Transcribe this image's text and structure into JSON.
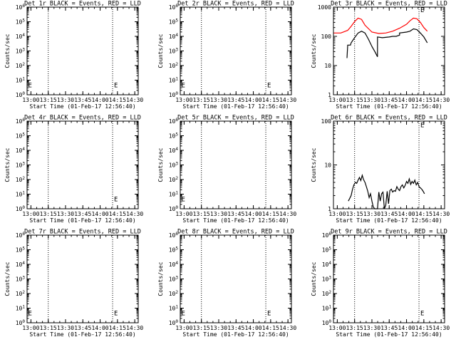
{
  "chart_data": [
    {
      "type": "line",
      "title": "Det 1r BLACK = Events, RED = LLD",
      "xlabel": "Start Time (01-Feb-17 12:56:40)",
      "ylabel": "Counts/sec",
      "xlim": [
        12.9444,
        14.55
      ],
      "log_y": true,
      "ylim": [
        1,
        1000000
      ],
      "xticks": [
        {
          "x": 13.0,
          "label": "13:00"
        },
        {
          "x": 13.25,
          "label": "13:15"
        },
        {
          "x": 13.5,
          "label": "13:30"
        },
        {
          "x": 13.75,
          "label": "13:45"
        },
        {
          "x": 14.0,
          "label": "14:00"
        },
        {
          "x": 14.25,
          "label": "14:15"
        },
        {
          "x": 14.5,
          "label": "14:30"
        }
      ],
      "yticks": [
        {
          "v": 1,
          "mant": "10",
          "exp": "0"
        },
        {
          "v": 10,
          "mant": "10",
          "exp": "1"
        },
        {
          "v": 100,
          "mant": "10",
          "exp": "2"
        },
        {
          "v": 1000,
          "mant": "10",
          "exp": "3"
        },
        {
          "v": 10000,
          "mant": "10",
          "exp": "4"
        },
        {
          "v": 100000,
          "mant": "10",
          "exp": "5"
        },
        {
          "v": 1000000,
          "mant": "10",
          "exp": "6"
        }
      ],
      "vlines": [
        13.25,
        14.18
      ],
      "markers": [
        {
          "text": "E",
          "x": 12.96,
          "y": 5
        },
        {
          "text": "E",
          "x": 14.2,
          "y": 5
        }
      ],
      "series": []
    },
    {
      "type": "line",
      "title": "Det 2r BLACK = Events, RED = LLD",
      "xlabel": "Start Time (01-Feb-17 12:56:40)",
      "ylabel": "Counts/sec",
      "xlim": [
        12.9444,
        14.55
      ],
      "log_y": true,
      "ylim": [
        1,
        1000000
      ],
      "xticks": [
        {
          "x": 13.0,
          "label": "13:00"
        },
        {
          "x": 13.25,
          "label": "13:15"
        },
        {
          "x": 13.5,
          "label": "13:30"
        },
        {
          "x": 13.75,
          "label": "13:45"
        },
        {
          "x": 14.0,
          "label": "14:00"
        },
        {
          "x": 14.25,
          "label": "14:15"
        },
        {
          "x": 14.5,
          "label": "14:30"
        }
      ],
      "yticks": [
        {
          "v": 1,
          "mant": "10",
          "exp": "0"
        },
        {
          "v": 10,
          "mant": "10",
          "exp": "1"
        },
        {
          "v": 100,
          "mant": "10",
          "exp": "2"
        },
        {
          "v": 1000,
          "mant": "10",
          "exp": "3"
        },
        {
          "v": 10000,
          "mant": "10",
          "exp": "4"
        },
        {
          "v": 100000,
          "mant": "10",
          "exp": "5"
        },
        {
          "v": 1000000,
          "mant": "10",
          "exp": "6"
        }
      ],
      "vlines": [
        13.25,
        14.18
      ],
      "markers": [
        {
          "text": "E",
          "x": 12.96,
          "y": 5
        },
        {
          "text": "E",
          "x": 14.2,
          "y": 5
        }
      ],
      "series": []
    },
    {
      "type": "line",
      "title": "Det 3r BLACK = Events, RED = LLD",
      "xlabel": "Start Time (01-Feb-17 12:56:40)",
      "ylabel": "Counts/sec",
      "xlim": [
        12.9444,
        14.55
      ],
      "log_y": true,
      "ylim": [
        1,
        1000
      ],
      "xticks": [
        {
          "x": 13.0,
          "label": "13:00"
        },
        {
          "x": 13.25,
          "label": "13:15"
        },
        {
          "x": 13.5,
          "label": "13:30"
        },
        {
          "x": 13.75,
          "label": "13:45"
        },
        {
          "x": 14.0,
          "label": "14:00"
        },
        {
          "x": 14.25,
          "label": "14:15"
        },
        {
          "x": 14.5,
          "label": "14:30"
        }
      ],
      "yticks": [
        {
          "v": 1,
          "mant": "1",
          "exp": ""
        },
        {
          "v": 10,
          "mant": "10",
          "exp": ""
        },
        {
          "v": 100,
          "mant": "100",
          "exp": ""
        },
        {
          "v": 1000,
          "mant": "1000",
          "exp": ""
        }
      ],
      "vlines": [
        13.25,
        14.18
      ],
      "markers": [
        {
          "text": "E",
          "x": 14.2,
          "y": 850
        }
      ],
      "series": [
        {
          "color": "#ff0000",
          "x": [
            12.95,
            13.05,
            13.15,
            13.2,
            13.25,
            13.3,
            13.35,
            13.4,
            13.5,
            13.6,
            13.7,
            13.8,
            13.9,
            14.0,
            14.05,
            14.1,
            14.15,
            14.2,
            14.25,
            14.3
          ],
          "y": [
            130,
            130,
            160,
            220,
            320,
            420,
            380,
            240,
            140,
            125,
            130,
            150,
            190,
            260,
            340,
            420,
            400,
            300,
            200,
            150
          ]
        },
        {
          "color": "#000000",
          "x": [
            13.14,
            13.15,
            13.19,
            13.2,
            13.25,
            13.3,
            13.35,
            13.4,
            13.45,
            13.5,
            13.55,
            13.58,
            13.58,
            13.65,
            13.75,
            13.8,
            13.85,
            13.9,
            13.9,
            14.0,
            14.05,
            14.1,
            14.15,
            14.2,
            14.25,
            14.3
          ],
          "y": [
            18,
            50,
            50,
            60,
            90,
            130,
            150,
            130,
            80,
            45,
            28,
            20,
            95,
            90,
            95,
            100,
            100,
            110,
            130,
            140,
            150,
            180,
            170,
            130,
            95,
            60
          ]
        }
      ]
    },
    {
      "type": "line",
      "title": "Det 4r BLACK = Events, RED = LLD",
      "xlabel": "Start Time (01-Feb-17 12:56:40)",
      "ylabel": "Counts/sec",
      "xlim": [
        12.9444,
        14.55
      ],
      "log_y": true,
      "ylim": [
        1,
        1000000
      ],
      "xticks": [
        {
          "x": 13.0,
          "label": "13:00"
        },
        {
          "x": 13.25,
          "label": "13:15"
        },
        {
          "x": 13.5,
          "label": "13:30"
        },
        {
          "x": 13.75,
          "label": "13:45"
        },
        {
          "x": 14.0,
          "label": "14:00"
        },
        {
          "x": 14.25,
          "label": "14:15"
        },
        {
          "x": 14.5,
          "label": "14:30"
        }
      ],
      "yticks": [
        {
          "v": 1,
          "mant": "10",
          "exp": "0"
        },
        {
          "v": 10,
          "mant": "10",
          "exp": "1"
        },
        {
          "v": 100,
          "mant": "10",
          "exp": "2"
        },
        {
          "v": 1000,
          "mant": "10",
          "exp": "3"
        },
        {
          "v": 10000,
          "mant": "10",
          "exp": "4"
        },
        {
          "v": 100000,
          "mant": "10",
          "exp": "5"
        },
        {
          "v": 1000000,
          "mant": "10",
          "exp": "6"
        }
      ],
      "vlines": [
        13.25,
        14.18
      ],
      "markers": [
        {
          "text": "E",
          "x": 14.2,
          "y": 5
        }
      ],
      "series": []
    },
    {
      "type": "line",
      "title": "Det 5r BLACK = Events, RED = LLD",
      "xlabel": "Start Time (01-Feb-17 12:56:40)",
      "ylabel": "Counts/sec",
      "xlim": [
        12.9444,
        14.55
      ],
      "log_y": true,
      "ylim": [
        1,
        1000000
      ],
      "xticks": [
        {
          "x": 13.0,
          "label": "13:00"
        },
        {
          "x": 13.25,
          "label": "13:15"
        },
        {
          "x": 13.5,
          "label": "13:30"
        },
        {
          "x": 13.75,
          "label": "13:45"
        },
        {
          "x": 14.0,
          "label": "14:00"
        },
        {
          "x": 14.25,
          "label": "14:15"
        },
        {
          "x": 14.5,
          "label": "14:30"
        }
      ],
      "yticks": [
        {
          "v": 1,
          "mant": "10",
          "exp": "0"
        },
        {
          "v": 10,
          "mant": "10",
          "exp": "1"
        },
        {
          "v": 100,
          "mant": "10",
          "exp": "2"
        },
        {
          "v": 1000,
          "mant": "10",
          "exp": "3"
        },
        {
          "v": 10000,
          "mant": "10",
          "exp": "4"
        },
        {
          "v": 100000,
          "mant": "10",
          "exp": "5"
        },
        {
          "v": 1000000,
          "mant": "10",
          "exp": "6"
        }
      ],
      "vlines": [
        13.25,
        14.18
      ],
      "markers": [
        {
          "text": "E",
          "x": 12.96,
          "y": 5
        }
      ],
      "series": []
    },
    {
      "type": "line",
      "title": "Det 6r BLACK = Events, RED = LLD",
      "xlabel": "Start Time (01-Feb-17 12:56:40)",
      "ylabel": "Counts/sec",
      "xlim": [
        12.9444,
        14.55
      ],
      "log_y": true,
      "ylim": [
        1,
        100
      ],
      "xticks": [
        {
          "x": 13.0,
          "label": "13:00"
        },
        {
          "x": 13.25,
          "label": "13:15"
        },
        {
          "x": 13.5,
          "label": "13:30"
        },
        {
          "x": 13.75,
          "label": "13:45"
        },
        {
          "x": 14.0,
          "label": "14:00"
        },
        {
          "x": 14.25,
          "label": "14:15"
        },
        {
          "x": 14.5,
          "label": "14:30"
        }
      ],
      "yticks": [
        {
          "v": 1,
          "mant": "1",
          "exp": ""
        },
        {
          "v": 10,
          "mant": "10",
          "exp": ""
        },
        {
          "v": 100,
          "mant": "100",
          "exp": ""
        }
      ],
      "vlines": [
        13.25,
        14.18
      ],
      "markers": [
        {
          "text": "E",
          "x": 14.2,
          "y": 85
        }
      ],
      "series": [
        {
          "color": "#000000",
          "x": [
            13.16,
            13.2,
            13.22,
            13.24,
            13.26,
            13.28,
            13.3,
            13.32,
            13.34,
            13.36,
            13.38,
            13.4,
            13.42,
            13.44,
            13.46,
            13.48,
            13.5,
            13.52,
            13.54,
            13.56,
            13.58,
            13.6,
            13.62,
            13.64,
            13.66,
            13.68,
            13.7,
            13.72,
            13.74,
            13.76,
            13.78,
            13.8,
            13.82,
            13.84,
            13.86,
            13.88,
            13.9,
            13.92,
            13.94,
            13.96,
            13.98,
            14.0,
            14.02,
            14.04,
            14.06,
            14.08,
            14.1,
            14.12,
            14.14,
            14.16,
            14.18,
            14.2,
            14.22,
            14.24,
            14.26
          ],
          "y": [
            1.5,
            2,
            2.8,
            3.5,
            4,
            3.8,
            4.5,
            5.2,
            4.4,
            5.8,
            4.6,
            4,
            3.2,
            2.5,
            1.8,
            2.2,
            1.5,
            1.1,
            1,
            1,
            1,
            2.4,
            1.5,
            2.2,
            2.4,
            1,
            1.2,
            2.5,
            1.3,
            2.6,
            2.8,
            2.4,
            2.6,
            2.5,
            3.2,
            2.8,
            2.6,
            3.2,
            3.5,
            3.0,
            3.4,
            4.2,
            3.8,
            4.8,
            3.6,
            4.2,
            3.8,
            4.5,
            3.5,
            4.0,
            3.2,
            3.0,
            2.8,
            2.5,
            2.2
          ]
        }
      ]
    },
    {
      "type": "line",
      "title": "Det 7r BLACK = Events, RED = LLD",
      "xlabel": "Start Time (01-Feb-17 12:56:40)",
      "ylabel": "Counts/sec",
      "xlim": [
        12.9444,
        14.55
      ],
      "log_y": true,
      "ylim": [
        1,
        1000000
      ],
      "xticks": [
        {
          "x": 13.0,
          "label": "13:00"
        },
        {
          "x": 13.25,
          "label": "13:15"
        },
        {
          "x": 13.5,
          "label": "13:30"
        },
        {
          "x": 13.75,
          "label": "13:45"
        },
        {
          "x": 14.0,
          "label": "14:00"
        },
        {
          "x": 14.25,
          "label": "14:15"
        },
        {
          "x": 14.5,
          "label": "14:30"
        }
      ],
      "yticks": [
        {
          "v": 1,
          "mant": "10",
          "exp": "0"
        },
        {
          "v": 10,
          "mant": "10",
          "exp": "1"
        },
        {
          "v": 100,
          "mant": "10",
          "exp": "2"
        },
        {
          "v": 1000,
          "mant": "10",
          "exp": "3"
        },
        {
          "v": 10000,
          "mant": "10",
          "exp": "4"
        },
        {
          "v": 100000,
          "mant": "10",
          "exp": "5"
        },
        {
          "v": 1000000,
          "mant": "10",
          "exp": "6"
        }
      ],
      "vlines": [
        13.25,
        14.18
      ],
      "markers": [
        {
          "text": "E",
          "x": 12.96,
          "y": 5
        },
        {
          "text": "E",
          "x": 14.2,
          "y": 5
        }
      ],
      "series": []
    },
    {
      "type": "line",
      "title": "Det 8r BLACK = Events, RED = LLD",
      "xlabel": "Start Time (01-Feb-17 12:56:40)",
      "ylabel": "Counts/sec",
      "xlim": [
        12.9444,
        14.55
      ],
      "log_y": true,
      "ylim": [
        1,
        1000000
      ],
      "xticks": [
        {
          "x": 13.0,
          "label": "13:00"
        },
        {
          "x": 13.25,
          "label": "13:15"
        },
        {
          "x": 13.5,
          "label": "13:30"
        },
        {
          "x": 13.75,
          "label": "13:45"
        },
        {
          "x": 14.0,
          "label": "14:00"
        },
        {
          "x": 14.25,
          "label": "14:15"
        },
        {
          "x": 14.5,
          "label": "14:30"
        }
      ],
      "yticks": [
        {
          "v": 1,
          "mant": "10",
          "exp": "0"
        },
        {
          "v": 10,
          "mant": "10",
          "exp": "1"
        },
        {
          "v": 100,
          "mant": "10",
          "exp": "2"
        },
        {
          "v": 1000,
          "mant": "10",
          "exp": "3"
        },
        {
          "v": 10000,
          "mant": "10",
          "exp": "4"
        },
        {
          "v": 100000,
          "mant": "10",
          "exp": "5"
        },
        {
          "v": 1000000,
          "mant": "10",
          "exp": "6"
        }
      ],
      "vlines": [
        13.25,
        14.18
      ],
      "markers": [
        {
          "text": "E",
          "x": 12.96,
          "y": 5
        },
        {
          "text": "E",
          "x": 14.2,
          "y": 5
        }
      ],
      "series": []
    },
    {
      "type": "line",
      "title": "Det 9r BLACK = Events, RED = LLD",
      "xlabel": "Start Time (01-Feb-17 12:56:40)",
      "ylabel": "Counts/sec",
      "xlim": [
        12.9444,
        14.55
      ],
      "log_y": true,
      "ylim": [
        1,
        1000000
      ],
      "xticks": [
        {
          "x": 13.0,
          "label": "13:00"
        },
        {
          "x": 13.25,
          "label": "13:15"
        },
        {
          "x": 13.5,
          "label": "13:30"
        },
        {
          "x": 13.75,
          "label": "13:45"
        },
        {
          "x": 14.0,
          "label": "14:00"
        },
        {
          "x": 14.25,
          "label": "14:15"
        },
        {
          "x": 14.5,
          "label": "14:30"
        }
      ],
      "yticks": [
        {
          "v": 1,
          "mant": "10",
          "exp": "0"
        },
        {
          "v": 10,
          "mant": "10",
          "exp": "1"
        },
        {
          "v": 100,
          "mant": "10",
          "exp": "2"
        },
        {
          "v": 1000,
          "mant": "10",
          "exp": "3"
        },
        {
          "v": 10000,
          "mant": "10",
          "exp": "4"
        },
        {
          "v": 100000,
          "mant": "10",
          "exp": "5"
        },
        {
          "v": 1000000,
          "mant": "10",
          "exp": "6"
        }
      ],
      "vlines": [
        13.25,
        14.18
      ],
      "markers": [
        {
          "text": "E",
          "x": 14.2,
          "y": 5
        }
      ],
      "series": []
    }
  ]
}
